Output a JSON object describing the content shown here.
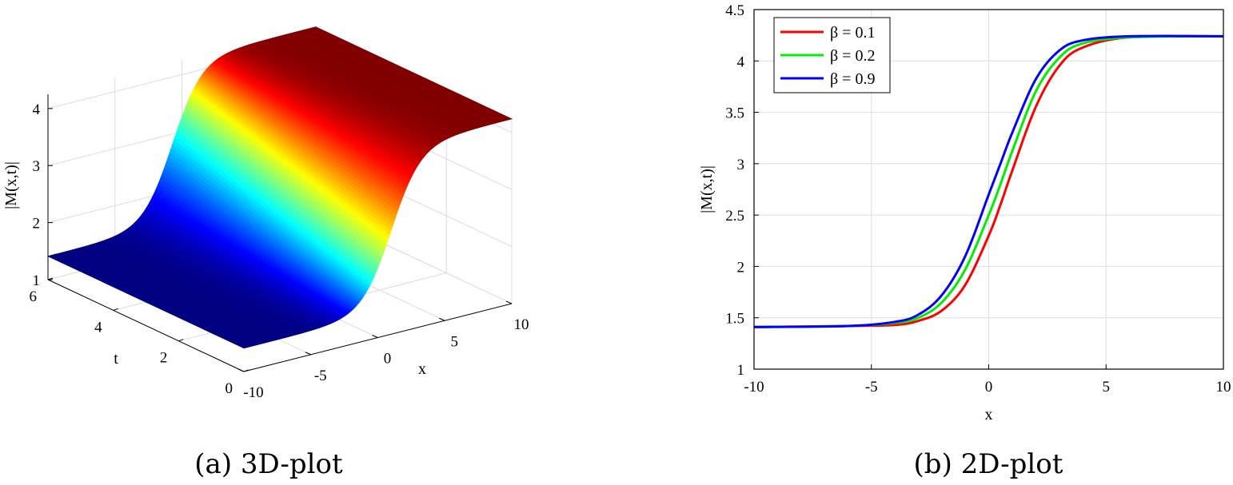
{
  "chart_data": [
    {
      "type": "surface",
      "caption": "(a) 3D-plot",
      "xlabel": "x",
      "ylabel": "t",
      "zlabel": "|M(x,t)|",
      "xlim": [
        -10,
        10
      ],
      "ylim": [
        0,
        6
      ],
      "zlim": [
        1,
        4.25
      ],
      "xticks": [
        "-10",
        "-5",
        "0",
        "5",
        "10"
      ],
      "yticks": [
        "0",
        "2",
        "4",
        "6"
      ],
      "zticks": [
        "1",
        "2",
        "3",
        "4"
      ],
      "z_low": 1.41,
      "z_high": 4.24,
      "front_center_x": 1.0,
      "back_center_x": -0.7,
      "colormap": "jet",
      "grid": true
    },
    {
      "type": "line",
      "caption": "(b) 2D-plot",
      "xlabel": "x",
      "ylabel": "|M(x,t)|",
      "xlim": [
        -10,
        10
      ],
      "ylim": [
        1,
        4.5
      ],
      "xticks": [
        "-10",
        "-5",
        "0",
        "5",
        "10"
      ],
      "yticks": [
        "1",
        "1.5",
        "2",
        "2.5",
        "3",
        "3.5",
        "4",
        "4.5"
      ],
      "grid": true,
      "legend_position": "top-left",
      "series": [
        {
          "name": "β = 0.1",
          "color": "#ff0000",
          "x": [
            -10,
            -6,
            -4,
            -3,
            -2,
            -1,
            0,
            0.5,
            1,
            2,
            3,
            4,
            6,
            10
          ],
          "y": [
            1.41,
            1.42,
            1.43,
            1.47,
            1.57,
            1.82,
            2.3,
            2.6,
            2.93,
            3.55,
            3.95,
            4.13,
            4.23,
            4.24
          ]
        },
        {
          "name": "β = 0.2",
          "color": "#00ee00",
          "x": [
            -10,
            -6,
            -4,
            -3,
            -2,
            -1,
            0,
            0.5,
            1,
            2,
            3,
            4,
            6,
            10
          ],
          "y": [
            1.41,
            1.42,
            1.45,
            1.5,
            1.65,
            1.97,
            2.5,
            2.8,
            3.12,
            3.7,
            4.03,
            4.17,
            4.23,
            4.24
          ]
        },
        {
          "name": "β = 0.9",
          "color": "#0000ff",
          "x": [
            -10,
            -6,
            -4,
            -3,
            -2,
            -1,
            0,
            0.5,
            1,
            2,
            3,
            4,
            6,
            10
          ],
          "y": [
            1.41,
            1.42,
            1.46,
            1.53,
            1.72,
            2.1,
            2.7,
            3.0,
            3.3,
            3.82,
            4.1,
            4.2,
            4.24,
            4.24
          ]
        }
      ]
    }
  ]
}
